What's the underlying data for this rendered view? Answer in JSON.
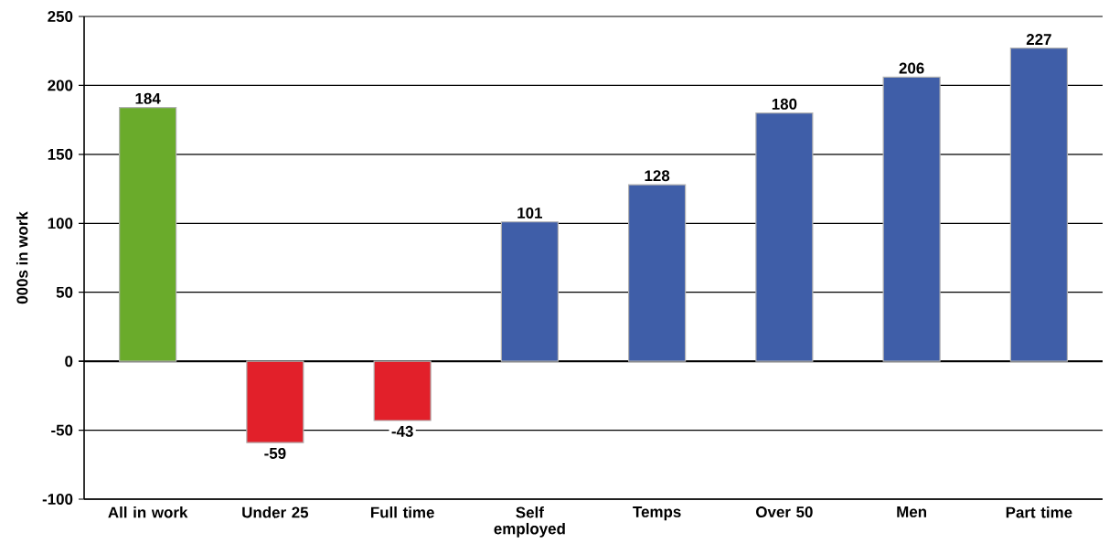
{
  "chart_data": {
    "type": "bar",
    "ylabel": "000s in work",
    "categories": [
      "All in work",
      "Under 25",
      "Full time",
      "Self employed",
      "Temps",
      "Over 50",
      "Men",
      "Part time"
    ],
    "values": [
      184,
      -59,
      -43,
      101,
      128,
      180,
      206,
      227
    ],
    "colors": [
      "#6aab2b",
      "#e2202a",
      "#e2202a",
      "#3f5ea8",
      "#3f5ea8",
      "#3f5ea8",
      "#3f5ea8",
      "#3f5ea8"
    ],
    "ylim": [
      -100,
      250
    ],
    "yticks": [
      -100,
      -50,
      0,
      50,
      100,
      150,
      200,
      250
    ],
    "grid": "y",
    "data_labels": true
  }
}
